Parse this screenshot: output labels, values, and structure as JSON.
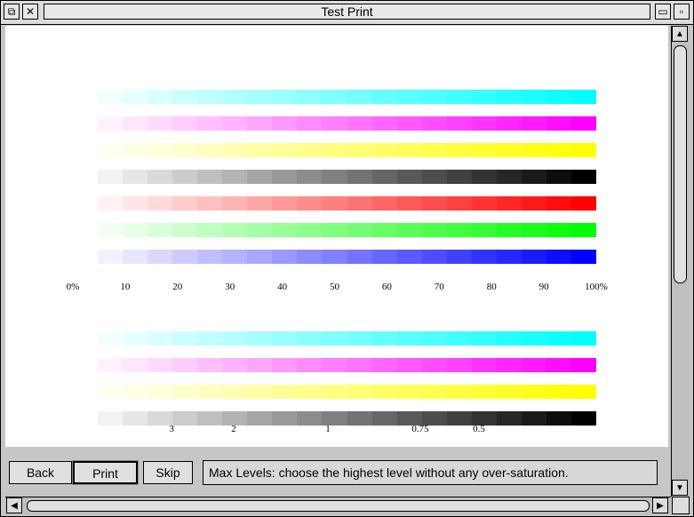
{
  "window": {
    "title": "Test Print",
    "back_icon": "back-icon",
    "close_icon": "close-icon",
    "iconise_icon": "iconise-icon",
    "toggle_size_icon": "toggle-size-icon"
  },
  "chart_top": {
    "rows": [
      {
        "name": "cyan",
        "color": "#00ffff"
      },
      {
        "name": "magenta",
        "color": "#ff00ff"
      },
      {
        "name": "yellow",
        "color": "#ffff00"
      },
      {
        "name": "black",
        "color": "#000000"
      },
      {
        "name": "red",
        "color": "#ff0000"
      },
      {
        "name": "green",
        "color": "#00ff00"
      },
      {
        "name": "blue",
        "color": "#0000ff"
      }
    ],
    "steps": 21,
    "tick_labels": [
      "0%",
      "10",
      "20",
      "30",
      "40",
      "50",
      "60",
      "70",
      "80",
      "90",
      "100%"
    ]
  },
  "chart_bottom": {
    "rows": [
      {
        "name": "cyan",
        "color": "#00ffff"
      },
      {
        "name": "magenta",
        "color": "#ff00ff"
      },
      {
        "name": "yellow",
        "color": "#ffff00"
      },
      {
        "name": "black",
        "color": "#000000"
      }
    ],
    "steps": 21,
    "level_labels": [
      {
        "text": "3",
        "pos": 0.1886
      },
      {
        "text": "2",
        "pos": 0.3072
      },
      {
        "text": "1",
        "pos": 0.4872
      },
      {
        "text": "0.75",
        "pos": 0.6638
      },
      {
        "text": "0.5",
        "pos": 0.7758
      }
    ]
  },
  "toolbar": {
    "back_label": "Back",
    "print_label": "Print",
    "skip_label": "Skip",
    "status_text": "Max Levels: choose the highest level without any over-saturation."
  }
}
